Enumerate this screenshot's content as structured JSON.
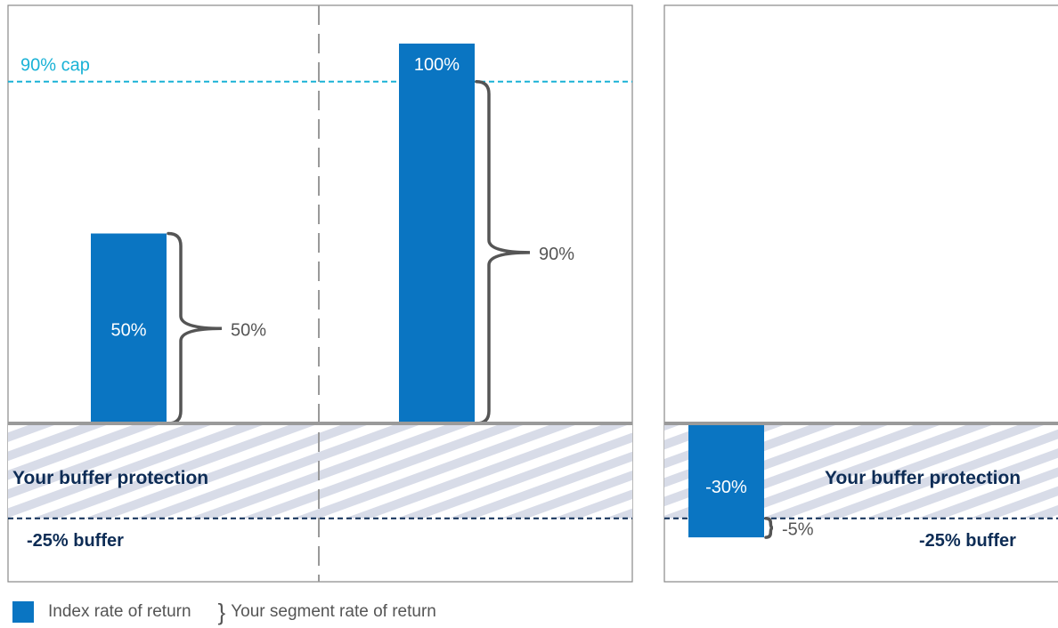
{
  "colors": {
    "bar": "#0a75c2",
    "cap_line": "#1ab2d6",
    "buffer_line": "#0d2c55",
    "bracket": "#555555",
    "hatch_stripe": "#d8dce8",
    "baseline": "#9a9a9a"
  },
  "chart_data": [
    {
      "type": "bar",
      "panel": "left",
      "categories": [
        "",
        ""
      ],
      "series": [
        {
          "values": [
            50,
            100
          ]
        }
      ],
      "bar_labels": [
        "50%",
        "100%"
      ],
      "segment_returns": [
        50,
        90
      ],
      "segment_labels": [
        "50%",
        "90%"
      ],
      "cap": {
        "value": 90,
        "label": "90% cap"
      },
      "buffer": {
        "value": -25,
        "label": "-25% buffer"
      },
      "buffer_zone_label": "Your buffer protection",
      "ylim": [
        -34,
        112
      ],
      "xlabel": "",
      "ylabel": "",
      "grid": false
    },
    {
      "type": "bar",
      "panel": "right",
      "categories": [
        ""
      ],
      "series": [
        {
          "values": [
            -30
          ]
        }
      ],
      "bar_labels": [
        "-30%"
      ],
      "segment_returns": [
        -5
      ],
      "segment_labels": [
        "-5%"
      ],
      "buffer": {
        "value": -25,
        "label": "-25% buffer"
      },
      "buffer_zone_label": "Your buffer protection",
      "ylim": [
        -34,
        112
      ],
      "xlabel": "",
      "ylabel": "",
      "grid": false
    }
  ],
  "legend": {
    "index_label": "Index rate of return",
    "segment_label": "Your segment rate of return",
    "segment_symbol": "}"
  }
}
